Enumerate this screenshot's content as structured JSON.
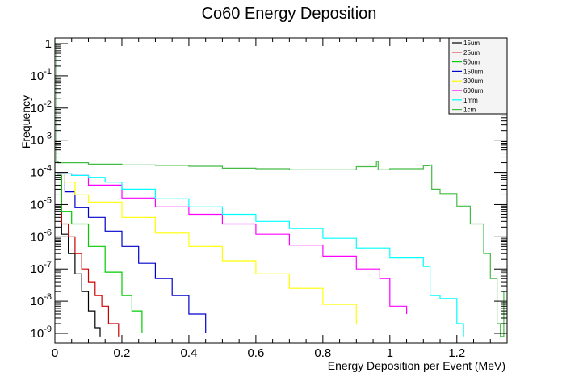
{
  "chart_data": {
    "type": "line",
    "title": "Co60 Energy Deposition",
    "xlabel": "Energy Deposition per Event (MeV)",
    "ylabel": "Frequency",
    "x_range": [
      0,
      1.35
    ],
    "y_range": [
      5e-10,
      1.5
    ],
    "y_scale": "log",
    "x_ticks": [
      0,
      0.2,
      0.4,
      0.6,
      0.8,
      1,
      1.2
    ],
    "x_tick_labels": [
      "0",
      "0.2",
      "0.4",
      "0.6",
      "0.8",
      "1",
      "1.2"
    ],
    "y_ticks": [
      1e-09,
      1e-08,
      1e-07,
      1e-06,
      1e-05,
      0.0001,
      0.001,
      0.01,
      0.1,
      1
    ],
    "y_tick_labels": [
      {
        "base": "10",
        "exp": "-9"
      },
      {
        "base": "10",
        "exp": "-8"
      },
      {
        "base": "10",
        "exp": "-7"
      },
      {
        "base": "10",
        "exp": "-6"
      },
      {
        "base": "10",
        "exp": "-5"
      },
      {
        "base": "10",
        "exp": "-4"
      },
      {
        "base": "10",
        "exp": "-3"
      },
      {
        "base": "10",
        "exp": "-2"
      },
      {
        "base": "10",
        "exp": "-1"
      },
      {
        "base": "1",
        "exp": ""
      }
    ],
    "grid": false,
    "legend_position": "top-right",
    "series": [
      {
        "name": "15um",
        "color": "#000000",
        "x": [
          0.005,
          0.02,
          0.04,
          0.06,
          0.08,
          0.1,
          0.12,
          0.135
        ],
        "y": [
          8e-05,
          1.2e-06,
          3e-07,
          7e-08,
          2e-08,
          5e-09,
          1.5e-09,
          8e-10
        ]
      },
      {
        "name": "25um",
        "color": "#cc0000",
        "x": [
          0.005,
          0.02,
          0.04,
          0.06,
          0.08,
          0.1,
          0.12,
          0.14,
          0.16,
          0.19
        ],
        "y": [
          8e-05,
          2.5e-06,
          1e-06,
          3e-07,
          1e-07,
          4e-08,
          1.5e-08,
          7e-09,
          2e-09,
          8e-10
        ]
      },
      {
        "name": "50um",
        "color": "#00cc00",
        "x": [
          0.005,
          0.02,
          0.05,
          0.1,
          0.15,
          0.2,
          0.23,
          0.26
        ],
        "y": [
          8e-05,
          6e-06,
          2.5e-06,
          5e-07,
          8e-08,
          1.5e-08,
          5e-09,
          1e-09
        ]
      },
      {
        "name": "150um",
        "color": "#0000cc",
        "x": [
          0.005,
          0.03,
          0.06,
          0.1,
          0.15,
          0.2,
          0.25,
          0.3,
          0.35,
          0.4,
          0.45
        ],
        "y": [
          9e-05,
          2.5e-05,
          8e-06,
          4e-06,
          1.5e-06,
          5e-07,
          1.5e-07,
          5e-08,
          1.5e-08,
          4e-09,
          1e-09
        ]
      },
      {
        "name": "300um",
        "color": "#ffff00",
        "x": [
          0.005,
          0.03,
          0.06,
          0.1,
          0.2,
          0.3,
          0.4,
          0.5,
          0.6,
          0.7,
          0.8,
          0.9
        ],
        "y": [
          9e-05,
          5e-05,
          2e-05,
          1.2e-05,
          4e-06,
          1.3e-06,
          5e-07,
          1.8e-07,
          7e-08,
          2.5e-08,
          8e-09,
          2e-09
        ]
      },
      {
        "name": "600um",
        "color": "#ff00ff",
        "x": [
          0.005,
          0.05,
          0.1,
          0.2,
          0.3,
          0.4,
          0.5,
          0.6,
          0.7,
          0.8,
          0.9,
          0.97,
          1.0,
          1.05
        ],
        "y": [
          9e-05,
          8e-05,
          4e-05,
          1.6e-05,
          8.5e-06,
          5e-06,
          2.5e-06,
          1.2e-06,
          5.5e-07,
          2.5e-07,
          1e-07,
          5e-08,
          7e-09,
          4e-09
        ]
      },
      {
        "name": "1mm",
        "color": "#00ffff",
        "x": [
          0.005,
          0.05,
          0.1,
          0.15,
          0.2,
          0.3,
          0.4,
          0.5,
          0.6,
          0.7,
          0.8,
          0.9,
          1.0,
          1.1,
          1.12,
          1.15,
          1.2,
          1.22
        ],
        "y": [
          9e-05,
          8e-05,
          7e-05,
          5e-05,
          3e-05,
          1.5e-05,
          8.5e-06,
          5e-06,
          3e-06,
          1.8e-06,
          9e-07,
          4.5e-07,
          2.2e-07,
          1.2e-07,
          1.5e-08,
          1.2e-08,
          2e-09,
          8e-10
        ]
      },
      {
        "name": "1cm",
        "color": "#44bb44",
        "x": [
          0.0,
          0.005,
          0.01,
          0.1,
          0.2,
          0.3,
          0.4,
          0.5,
          0.6,
          0.7,
          0.8,
          0.9,
          0.96,
          0.965,
          1.0,
          1.1,
          1.12,
          1.125,
          1.15,
          1.2,
          1.24,
          1.28,
          1.3,
          1.32,
          1.33,
          1.34
        ],
        "y": [
          1.0,
          0.00021,
          0.0002,
          0.00018,
          0.00017,
          0.000165,
          0.000155,
          0.000135,
          0.00013,
          0.00012,
          0.00012,
          0.00015,
          0.00022,
          0.00012,
          0.00013,
          0.00016,
          0.00017,
          3e-05,
          2.2e-05,
          9e-06,
          2.5e-06,
          3e-07,
          5e-08,
          2e-09,
          8e-10,
          2e-08
        ]
      }
    ]
  }
}
